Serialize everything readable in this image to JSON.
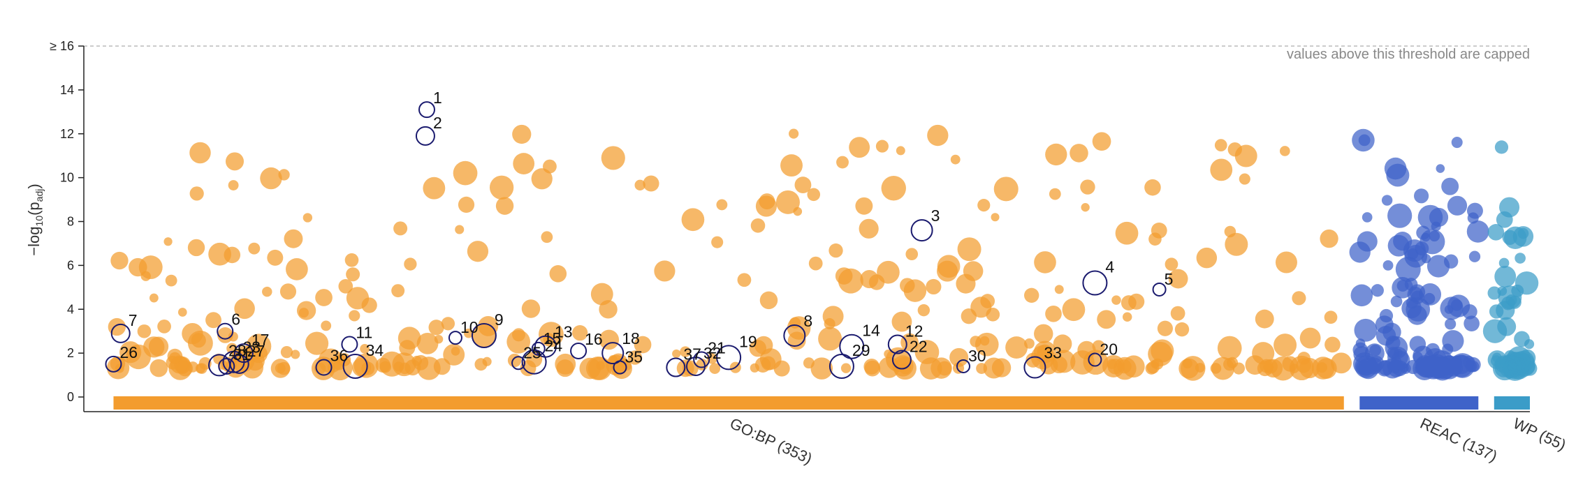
{
  "chart_data": {
    "type": "scatter",
    "title": "",
    "xlabel": "",
    "ylabel": "-log10(padj)",
    "ylabel_parts": {
      "prefix": "−log",
      "sub": "10",
      "mid": "(p",
      "sub2": "adj",
      "suffix": ")"
    },
    "ylim": [
      0,
      16
    ],
    "yticks": [
      {
        "value": 0,
        "label": "0"
      },
      {
        "value": 2,
        "label": "2"
      },
      {
        "value": 4,
        "label": "4"
      },
      {
        "value": 6,
        "label": "6"
      },
      {
        "value": 8,
        "label": "8"
      },
      {
        "value": 10,
        "label": "10"
      },
      {
        "value": 12,
        "label": "12"
      },
      {
        "value": 14,
        "label": "14"
      },
      {
        "value": 16,
        "label": "≥ 16"
      }
    ],
    "cap_note": "values above this threshold are capped",
    "x_range": [
      0,
      1000
    ],
    "sources": [
      {
        "name": "GO:BP",
        "label": "GO:BP (353)",
        "count": 353,
        "color": "#f39c2e",
        "x_start": 10,
        "x_end": 870
      },
      {
        "name": "REAC",
        "label": "REAC (137)",
        "count": 137,
        "color": "#3f63c9",
        "x_start": 881,
        "x_end": 964
      },
      {
        "name": "WP",
        "label": "WP (55)",
        "count": 55,
        "color": "#3b9cc8",
        "x_start": 975,
        "x_end": 1000
      }
    ],
    "highlighted": [
      {
        "id": "1",
        "x": 229,
        "y": 13.1
      },
      {
        "id": "2",
        "x": 228,
        "y": 11.9
      },
      {
        "id": "3",
        "x": 575,
        "y": 7.6
      },
      {
        "id": "4",
        "x": 696,
        "y": 5.2
      },
      {
        "id": "5",
        "x": 741,
        "y": 4.9
      },
      {
        "id": "6",
        "x": 88,
        "y": 3.0
      },
      {
        "id": "7",
        "x": 15,
        "y": 2.9
      },
      {
        "id": "8",
        "x": 486,
        "y": 2.8
      },
      {
        "id": "9",
        "x": 269,
        "y": 2.8
      },
      {
        "id": "10",
        "x": 249,
        "y": 2.7
      },
      {
        "id": "11",
        "x": 175,
        "y": 2.4
      },
      {
        "id": "12",
        "x": 558,
        "y": 2.4
      },
      {
        "id": "13",
        "x": 312,
        "y": 2.3
      },
      {
        "id": "14",
        "x": 526,
        "y": 2.3
      },
      {
        "id": "15",
        "x": 307,
        "y": 2.2
      },
      {
        "id": "16",
        "x": 335,
        "y": 2.1
      },
      {
        "id": "17",
        "x": 101,
        "y": 2.0
      },
      {
        "id": "18",
        "x": 359,
        "y": 2.0
      },
      {
        "id": "19",
        "x": 440,
        "y": 1.8
      },
      {
        "id": "20",
        "x": 696,
        "y": 1.7
      },
      {
        "id": "21",
        "x": 421,
        "y": 1.7
      },
      {
        "id": "22",
        "x": 561,
        "y": 1.7
      },
      {
        "id": "23",
        "x": 94,
        "y": 1.6
      },
      {
        "id": "24",
        "x": 304,
        "y": 1.6
      },
      {
        "id": "25",
        "x": 293,
        "y": 1.55
      },
      {
        "id": "26",
        "x": 10,
        "y": 1.5
      },
      {
        "id": "27",
        "x": 98,
        "y": 1.5
      },
      {
        "id": "28",
        "x": 84,
        "y": 1.45
      },
      {
        "id": "29",
        "x": 519,
        "y": 1.4
      },
      {
        "id": "30",
        "x": 604,
        "y": 1.4
      },
      {
        "id": "31",
        "x": 89,
        "y": 1.4
      },
      {
        "id": "32",
        "x": 417,
        "y": 1.4
      },
      {
        "id": "33",
        "x": 654,
        "y": 1.35
      },
      {
        "id": "34",
        "x": 179,
        "y": 1.4
      },
      {
        "id": "35",
        "x": 364,
        "y": 1.35
      },
      {
        "id": "36",
        "x": 157,
        "y": 1.35
      },
      {
        "id": "37",
        "x": 403,
        "y": 1.35
      }
    ]
  }
}
